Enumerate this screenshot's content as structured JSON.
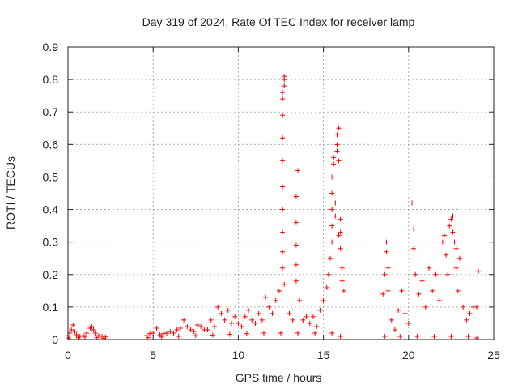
{
  "chart_data": {
    "type": "scatter",
    "title": "Day 319 of 2024, Rate Of TEC Index for receiver lamp",
    "xlabel": "GPS time / hours",
    "ylabel": "ROTI / TECUs",
    "xlim": [
      0,
      25
    ],
    "ylim": [
      0,
      0.9
    ],
    "x_ticks": [
      0,
      5,
      10,
      15,
      20,
      25
    ],
    "y_ticks": [
      0,
      0.1,
      0.2,
      0.3,
      0.4,
      0.5,
      0.6,
      0.7,
      0.8,
      0.9
    ],
    "x_tick_labels": [
      "0",
      "5",
      "10",
      "15",
      "20",
      "25"
    ],
    "y_tick_labels": [
      "0",
      "0.1",
      "0.2",
      "0.3",
      "0.4",
      "0.5",
      "0.6",
      "0.7",
      "0.8",
      "0.9"
    ],
    "grid": true,
    "marker": "plus",
    "color": "#ff0000",
    "series": [
      {
        "points": [
          [
            0.0,
            0.012
          ],
          [
            0.1,
            0.02
          ],
          [
            0.2,
            0.03
          ],
          [
            0.3,
            0.045
          ],
          [
            0.4,
            0.025
          ],
          [
            0.5,
            0.015
          ],
          [
            0.7,
            0.01
          ],
          [
            0.9,
            0.012
          ],
          [
            1.1,
            0.02
          ],
          [
            1.3,
            0.035
          ],
          [
            1.4,
            0.04
          ],
          [
            1.5,
            0.03
          ],
          [
            1.6,
            0.02
          ],
          [
            1.8,
            0.012
          ],
          [
            2.0,
            0.01
          ],
          [
            2.2,
            0.008
          ],
          [
            4.6,
            0.012
          ],
          [
            4.8,
            0.018
          ],
          [
            5.0,
            0.02
          ],
          [
            5.2,
            0.035
          ],
          [
            5.4,
            0.015
          ],
          [
            5.6,
            0.018
          ],
          [
            5.8,
            0.02
          ],
          [
            6.0,
            0.025
          ],
          [
            6.2,
            0.02
          ],
          [
            6.4,
            0.03
          ],
          [
            6.6,
            0.035
          ],
          [
            6.8,
            0.06
          ],
          [
            7.0,
            0.04
          ],
          [
            7.2,
            0.03
          ],
          [
            7.4,
            0.025
          ],
          [
            7.6,
            0.045
          ],
          [
            7.8,
            0.04
          ],
          [
            8.0,
            0.03
          ],
          [
            8.2,
            0.03
          ],
          [
            8.4,
            0.06
          ],
          [
            8.6,
            0.04
          ],
          [
            8.8,
            0.1
          ],
          [
            9.0,
            0.08
          ],
          [
            9.2,
            0.06
          ],
          [
            9.4,
            0.09
          ],
          [
            9.6,
            0.05
          ],
          [
            9.8,
            0.07
          ],
          [
            10.0,
            0.05
          ],
          [
            10.2,
            0.04
          ],
          [
            10.4,
            0.07
          ],
          [
            10.6,
            0.09
          ],
          [
            10.8,
            0.06
          ],
          [
            11.0,
            0.05
          ],
          [
            11.2,
            0.08
          ],
          [
            11.4,
            0.06
          ],
          [
            11.6,
            0.13
          ],
          [
            11.8,
            0.1
          ],
          [
            12.0,
            0.08
          ],
          [
            12.2,
            0.12
          ],
          [
            12.4,
            0.15
          ],
          [
            12.6,
            0.22
          ],
          [
            12.6,
            0.27
          ],
          [
            12.6,
            0.33
          ],
          [
            12.6,
            0.4
          ],
          [
            12.6,
            0.47
          ],
          [
            12.6,
            0.55
          ],
          [
            12.6,
            0.62
          ],
          [
            12.6,
            0.69
          ],
          [
            12.6,
            0.74
          ],
          [
            12.6,
            0.76
          ],
          [
            12.7,
            0.78
          ],
          [
            12.7,
            0.8
          ],
          [
            12.7,
            0.81
          ],
          [
            12.7,
            0.17
          ],
          [
            13.0,
            0.08
          ],
          [
            13.2,
            0.06
          ],
          [
            13.4,
            0.18
          ],
          [
            13.4,
            0.23
          ],
          [
            13.4,
            0.29
          ],
          [
            13.4,
            0.36
          ],
          [
            13.4,
            0.44
          ],
          [
            13.5,
            0.52
          ],
          [
            13.6,
            0.12
          ],
          [
            13.8,
            0.06
          ],
          [
            14.0,
            0.07
          ],
          [
            14.2,
            0.05
          ],
          [
            14.4,
            0.07
          ],
          [
            14.6,
            0.04
          ],
          [
            14.8,
            0.09
          ],
          [
            15.0,
            0.12
          ],
          [
            15.2,
            0.16
          ],
          [
            15.3,
            0.2
          ],
          [
            15.4,
            0.25
          ],
          [
            15.5,
            0.3
          ],
          [
            15.5,
            0.35
          ],
          [
            15.5,
            0.4
          ],
          [
            15.5,
            0.45
          ],
          [
            15.5,
            0.5
          ],
          [
            15.6,
            0.54
          ],
          [
            15.6,
            0.56
          ],
          [
            15.7,
            0.42
          ],
          [
            15.7,
            0.38
          ],
          [
            15.8,
            0.58
          ],
          [
            15.8,
            0.6
          ],
          [
            15.8,
            0.63
          ],
          [
            15.9,
            0.65
          ],
          [
            15.9,
            0.55
          ],
          [
            15.9,
            0.32
          ],
          [
            16.0,
            0.37
          ],
          [
            16.0,
            0.33
          ],
          [
            16.0,
            0.28
          ],
          [
            16.1,
            0.22
          ],
          [
            16.1,
            0.18
          ],
          [
            16.2,
            0.15
          ],
          [
            18.5,
            0.14
          ],
          [
            18.6,
            0.2
          ],
          [
            18.7,
            0.27
          ],
          [
            18.7,
            0.3
          ],
          [
            18.8,
            0.22
          ],
          [
            18.8,
            0.15
          ],
          [
            19.0,
            0.06
          ],
          [
            19.2,
            0.03
          ],
          [
            19.4,
            0.09
          ],
          [
            19.6,
            0.15
          ],
          [
            19.8,
            0.08
          ],
          [
            20.0,
            0.05
          ],
          [
            20.2,
            0.42
          ],
          [
            20.3,
            0.34
          ],
          [
            20.3,
            0.28
          ],
          [
            20.4,
            0.2
          ],
          [
            20.6,
            0.14
          ],
          [
            20.8,
            0.18
          ],
          [
            21.0,
            0.1
          ],
          [
            21.2,
            0.22
          ],
          [
            21.4,
            0.15
          ],
          [
            21.6,
            0.2
          ],
          [
            21.8,
            0.12
          ],
          [
            22.0,
            0.3
          ],
          [
            22.1,
            0.32
          ],
          [
            22.2,
            0.26
          ],
          [
            22.3,
            0.2
          ],
          [
            22.4,
            0.35
          ],
          [
            22.5,
            0.37
          ],
          [
            22.6,
            0.38
          ],
          [
            22.6,
            0.33
          ],
          [
            22.7,
            0.3
          ],
          [
            22.8,
            0.28
          ],
          [
            22.8,
            0.22
          ],
          [
            22.9,
            0.15
          ],
          [
            23.0,
            0.25
          ],
          [
            23.2,
            0.1
          ],
          [
            23.4,
            0.06
          ],
          [
            23.6,
            0.08
          ],
          [
            23.8,
            0.1
          ],
          [
            24.0,
            0.1
          ],
          [
            24.1,
            0.21
          ],
          [
            0.05,
            0.005
          ],
          [
            0.6,
            0.006
          ],
          [
            1.0,
            0.008
          ],
          [
            1.7,
            0.006
          ],
          [
            2.1,
            0.004
          ],
          [
            4.7,
            0.006
          ],
          [
            5.5,
            0.008
          ],
          [
            6.5,
            0.01
          ],
          [
            7.5,
            0.012
          ],
          [
            8.5,
            0.014
          ],
          [
            9.5,
            0.016
          ],
          [
            10.5,
            0.018
          ],
          [
            11.5,
            0.02
          ],
          [
            12.5,
            0.02
          ],
          [
            13.5,
            0.02
          ],
          [
            14.5,
            0.02
          ],
          [
            15.5,
            0.02
          ],
          [
            16.0,
            0.01
          ],
          [
            18.6,
            0.01
          ],
          [
            19.5,
            0.01
          ],
          [
            20.5,
            0.01
          ],
          [
            21.5,
            0.01
          ],
          [
            22.5,
            0.01
          ],
          [
            23.5,
            0.01
          ],
          [
            24.0,
            0.005
          ]
        ]
      }
    ]
  }
}
